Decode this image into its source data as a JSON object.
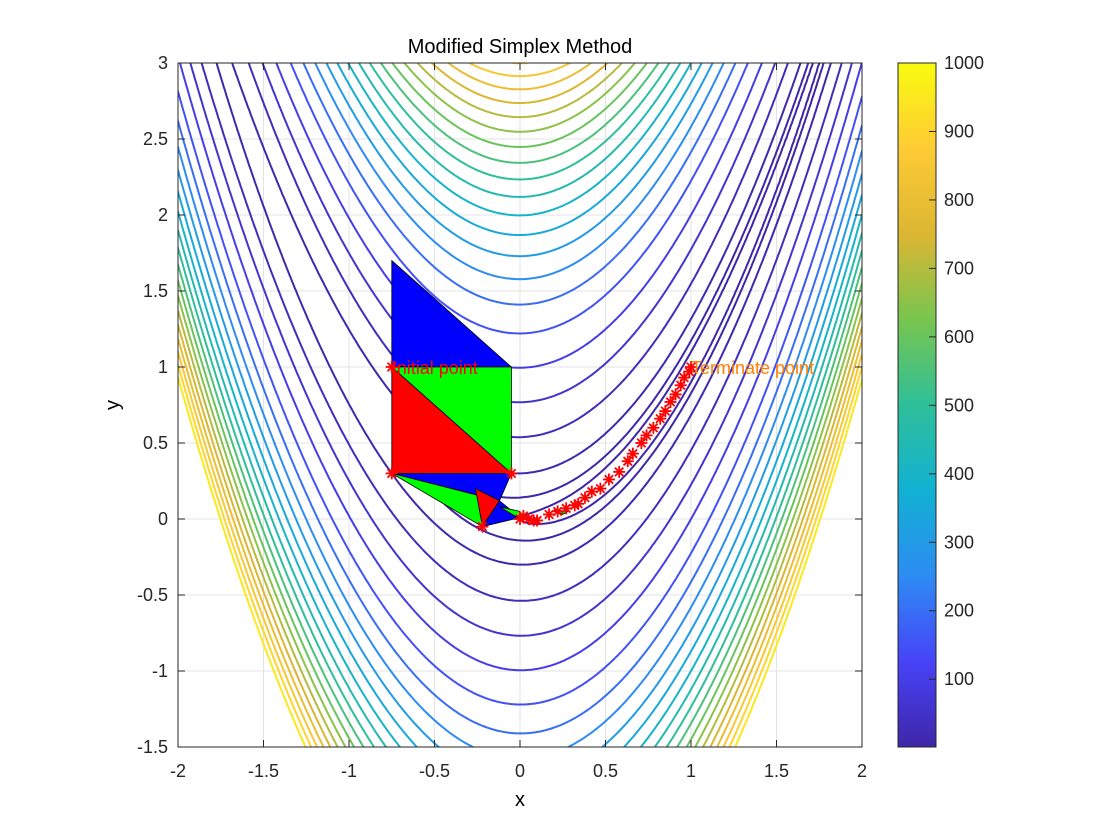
{
  "chart_data": {
    "type": "contour",
    "title": "Modified Simplex Method",
    "xlabel": "x",
    "ylabel": "y",
    "xlim": [
      -2,
      2
    ],
    "ylim": [
      -1.5,
      3
    ],
    "xticks": [
      -2,
      -1.5,
      -1,
      -0.5,
      0,
      0.5,
      1,
      1.5,
      2
    ],
    "yticks": [
      -1.5,
      -1,
      -0.5,
      0,
      0.5,
      1,
      1.5,
      2,
      2.5,
      3
    ],
    "xtick_labels": [
      "-2",
      "-1.5",
      "-1",
      "-0.5",
      "0",
      "0.5",
      "1",
      "1.5",
      "2"
    ],
    "ytick_labels": [
      "-1.5",
      "-1",
      "-0.5",
      "0",
      "0.5",
      "1",
      "1.5",
      "2",
      "2.5",
      "3"
    ],
    "grid": true,
    "function": "Rosenbrock f(x,y) = 100(y - x^2)^2 + (1 - x)^2",
    "contour_levels": [
      1,
      3,
      10,
      30,
      60,
      100,
      150,
      200,
      250,
      300,
      350,
      400,
      450,
      500,
      550,
      600,
      650,
      700,
      750,
      800,
      850,
      900,
      950
    ],
    "colorbar": {
      "range": [
        1,
        1000
      ],
      "ticks": [
        100,
        200,
        300,
        400,
        500,
        600,
        700,
        800,
        900,
        1000
      ],
      "tick_labels": [
        "100",
        "200",
        "300",
        "400",
        "500",
        "600",
        "700",
        "800",
        "900",
        "1000"
      ],
      "colormap": "parula",
      "stops": [
        "#3e26a8",
        "#4743f8",
        "#2d8cf3",
        "#12b1d2",
        "#2ebf99",
        "#78c54e",
        "#dcb632",
        "#fecb35",
        "#f9fb0e"
      ]
    },
    "simplices": [
      {
        "color": "#0000ff",
        "points": [
          [
            -0.75,
            1.7
          ],
          [
            -0.05,
            1.0
          ],
          [
            -0.75,
            1.0
          ]
        ]
      },
      {
        "color": "#00ff00",
        "points": [
          [
            -0.75,
            1.0
          ],
          [
            -0.05,
            1.0
          ],
          [
            -0.05,
            0.3
          ]
        ]
      },
      {
        "color": "#ff0000",
        "points": [
          [
            -0.75,
            1.0
          ],
          [
            -0.05,
            0.3
          ],
          [
            -0.75,
            0.3
          ]
        ]
      },
      {
        "color": "#0000ff",
        "points": [
          [
            -0.75,
            0.3
          ],
          [
            -0.05,
            0.3
          ],
          [
            -0.12,
            0.12
          ]
        ]
      },
      {
        "color": "#00ff00",
        "points": [
          [
            -0.75,
            0.3
          ],
          [
            -0.12,
            0.12
          ],
          [
            -0.22,
            -0.05
          ]
        ]
      },
      {
        "color": "#ff0000",
        "points": [
          [
            -0.26,
            0.2
          ],
          [
            -0.12,
            0.12
          ],
          [
            -0.22,
            -0.05
          ]
        ]
      },
      {
        "color": "#0000ff",
        "points": [
          [
            -0.22,
            -0.05
          ],
          [
            -0.12,
            0.12
          ],
          [
            0.0,
            0.01
          ]
        ]
      },
      {
        "color": "#00ff00",
        "points": [
          [
            -0.12,
            0.08
          ],
          [
            0.0,
            0.05
          ],
          [
            0.0,
            0.0
          ]
        ]
      },
      {
        "color": "#0000ff",
        "points": [
          [
            0.02,
            0.02
          ],
          [
            0.1,
            -0.02
          ],
          [
            0.05,
            -0.01
          ]
        ]
      },
      {
        "color": "#00ff00",
        "points": [
          [
            0.2,
            0.06
          ],
          [
            0.28,
            0.05
          ],
          [
            0.25,
            0.03
          ]
        ]
      }
    ],
    "vertices": [
      [
        -0.75,
        1.0
      ],
      [
        -0.75,
        0.3
      ],
      [
        -0.05,
        0.3
      ],
      [
        -0.22,
        -0.05
      ],
      [
        0.0,
        0.0
      ],
      [
        0.02,
        0.02
      ],
      [
        0.05,
        0.0
      ],
      [
        0.08,
        -0.01
      ],
      [
        0.1,
        -0.01
      ],
      [
        0.17,
        0.03
      ],
      [
        0.22,
        0.05
      ],
      [
        0.27,
        0.07
      ],
      [
        0.32,
        0.09
      ],
      [
        0.34,
        0.1
      ],
      [
        0.38,
        0.14
      ],
      [
        0.42,
        0.18
      ],
      [
        0.47,
        0.2
      ],
      [
        0.52,
        0.26
      ],
      [
        0.58,
        0.31
      ],
      [
        0.63,
        0.38
      ],
      [
        0.66,
        0.43
      ],
      [
        0.71,
        0.5
      ],
      [
        0.74,
        0.55
      ],
      [
        0.78,
        0.6
      ],
      [
        0.82,
        0.66
      ],
      [
        0.85,
        0.71
      ],
      [
        0.88,
        0.77
      ],
      [
        0.91,
        0.82
      ],
      [
        0.94,
        0.88
      ],
      [
        0.96,
        0.93
      ],
      [
        0.99,
        0.97
      ],
      [
        1.0,
        1.0
      ]
    ],
    "vertex_color": "#ff0000",
    "annotations": [
      {
        "text": "Initial point",
        "x": -0.75,
        "y": 1.0,
        "color": "#ff0000"
      },
      {
        "text": "Terminate point",
        "x": 1.0,
        "y": 1.0,
        "color": "#ff8000"
      }
    ]
  }
}
